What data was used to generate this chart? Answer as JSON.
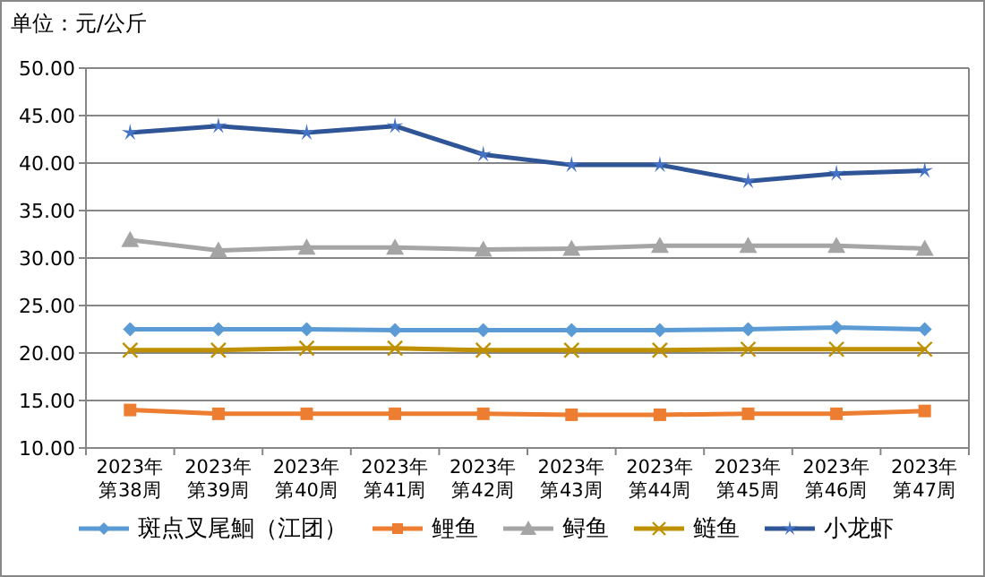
{
  "chart_data": {
    "type": "line",
    "title": "单位：元/公斤",
    "categories": [
      "2023年第38周",
      "2023年第39周",
      "2023年第40周",
      "2023年第41周",
      "2023年第42周",
      "2023年第43周",
      "2023年第44周",
      "2023年第45周",
      "2023年第46周",
      "2023年第47周"
    ],
    "series": [
      {
        "name": "斑点叉尾鮰（江团）",
        "color": "#5b9bd5",
        "marker": "diamond",
        "values": [
          22.5,
          22.5,
          22.5,
          22.4,
          22.4,
          22.4,
          22.4,
          22.5,
          22.7,
          22.5
        ]
      },
      {
        "name": "鲤鱼",
        "color": "#ed7d31",
        "marker": "square",
        "values": [
          14.0,
          13.6,
          13.6,
          13.6,
          13.6,
          13.5,
          13.5,
          13.6,
          13.6,
          13.9
        ]
      },
      {
        "name": "鲟鱼",
        "color": "#a5a5a5",
        "marker": "triangle",
        "values": [
          31.9,
          30.8,
          31.1,
          31.1,
          30.9,
          31.0,
          31.3,
          31.3,
          31.3,
          31.0
        ]
      },
      {
        "name": "鲢鱼",
        "color": "#bf9000",
        "marker": "cross",
        "values": [
          20.3,
          20.3,
          20.5,
          20.5,
          20.3,
          20.3,
          20.3,
          20.4,
          20.4,
          20.4
        ]
      },
      {
        "name": "小龙虾",
        "color": "#2f5597",
        "marker": "star",
        "values": [
          43.2,
          43.9,
          43.2,
          43.9,
          40.9,
          39.8,
          39.8,
          38.1,
          38.9,
          39.2
        ]
      }
    ],
    "ylim": [
      10,
      50
    ],
    "yticks": [
      {
        "value": 10,
        "label": "10.00"
      },
      {
        "value": 15,
        "label": "15.00"
      },
      {
        "value": 20,
        "label": "20.00"
      },
      {
        "value": 25,
        "label": "25.00"
      },
      {
        "value": 30,
        "label": "30.00"
      },
      {
        "value": 35,
        "label": "35.00"
      },
      {
        "value": 40,
        "label": "40.00"
      },
      {
        "value": 45,
        "label": "45.00"
      },
      {
        "value": 50,
        "label": "50.00"
      }
    ],
    "grid": "y",
    "legend": "bottom"
  }
}
